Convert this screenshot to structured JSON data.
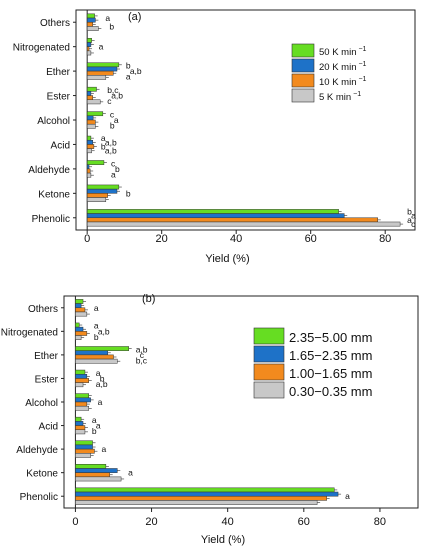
{
  "chart_data": [
    {
      "type": "bar",
      "orientation": "horizontal",
      "panel_label": "(a)",
      "xlabel": "Yield (%)",
      "xlim": [
        -3,
        88
      ],
      "xticks": [
        0,
        20,
        40,
        60,
        80
      ],
      "categories": [
        "Others",
        "Nitrogenated",
        "Ether",
        "Ester",
        "Alcohol",
        "Acid",
        "Aldehyde",
        "Ketone",
        "Phenolic"
      ],
      "series": [
        {
          "name": "50 K min",
          "unit_sup": "−1",
          "color": "#66dd22",
          "values": [
            2.0,
            1.2,
            8.5,
            2.5,
            4.2,
            1.0,
            4.5,
            8.5,
            67.5
          ]
        },
        {
          "name": "20 K min",
          "unit_sup": "−1",
          "color": "#1e72c8",
          "values": [
            2.2,
            1.0,
            8.0,
            1.0,
            1.6,
            1.5,
            0.5,
            8.0,
            69.0
          ]
        },
        {
          "name": "10 K min",
          "unit_sup": "−1",
          "color": "#f28a1e",
          "values": [
            1.5,
            0.5,
            7.0,
            1.5,
            2.2,
            1.8,
            0.8,
            5.5,
            78.0
          ]
        },
        {
          "name": "5  K min",
          "unit_sup": "−1",
          "color": "#c8c8c8",
          "values": [
            3.0,
            1.0,
            5.0,
            3.5,
            2.2,
            1.2,
            1.0,
            5.0,
            84.0
          ]
        }
      ],
      "annotations": [
        {
          "category": "Others",
          "letters": [
            "a",
            "b"
          ]
        },
        {
          "category": "Nitrogenated",
          "letters": [
            "a"
          ]
        },
        {
          "category": "Ether",
          "letters": [
            "b",
            "a,b",
            "a"
          ]
        },
        {
          "category": "Ester",
          "letters": [
            "b,c",
            "a,b",
            "c"
          ]
        },
        {
          "category": "Alcohol",
          "letters": [
            "c",
            "a",
            "b"
          ]
        },
        {
          "category": "Acid",
          "letters": [
            "a",
            "a,b",
            "b",
            "a,b"
          ]
        },
        {
          "category": "Aldehyde",
          "letters": [
            "c",
            "b",
            "a"
          ]
        },
        {
          "category": "Ketone",
          "letters": [
            "b"
          ]
        },
        {
          "category": "Phenolic",
          "letters": [
            "b",
            "a",
            "a",
            "c"
          ]
        }
      ]
    },
    {
      "type": "bar",
      "orientation": "horizontal",
      "panel_label": "(b)",
      "xlabel": "Yield (%)",
      "xlim": [
        -3,
        90
      ],
      "xticks": [
        0,
        20,
        40,
        60,
        80
      ],
      "categories": [
        "Others",
        "Nitrogenated",
        "Ether",
        "Ester",
        "Alcohol",
        "Acid",
        "Aldehyde",
        "Ketone",
        "Phenolic"
      ],
      "series": [
        {
          "name": "2.35−5.00 mm",
          "color": "#66dd22",
          "values": [
            2.0,
            1.0,
            14.0,
            2.5,
            3.5,
            1.5,
            4.5,
            8.0,
            68.0
          ]
        },
        {
          "name": "1.65−2.35 mm",
          "color": "#1e72c8",
          "values": [
            1.5,
            2.0,
            8.5,
            3.0,
            4.0,
            2.0,
            4.5,
            11.0,
            69.0
          ]
        },
        {
          "name": "1.00−1.65 mm",
          "color": "#f28a1e",
          "values": [
            2.5,
            3.0,
            10.0,
            3.5,
            3.0,
            2.5,
            5.0,
            9.0,
            66.0
          ]
        },
        {
          "name": "0.30−0.35 mm",
          "color": "#c8c8c8",
          "values": [
            3.0,
            1.5,
            11.0,
            2.0,
            3.5,
            2.5,
            4.0,
            12.0,
            63.5
          ]
        }
      ],
      "annotations": [
        {
          "category": "Others",
          "letters": [
            "a"
          ]
        },
        {
          "category": "Nitrogenated",
          "letters": [
            "a",
            "a,b",
            "b"
          ]
        },
        {
          "category": "Ether",
          "letters": [
            "a,b",
            "c",
            "b,c"
          ]
        },
        {
          "category": "Ester",
          "letters": [
            "a",
            "b",
            "a,b"
          ]
        },
        {
          "category": "Alcohol",
          "letters": [
            "a"
          ]
        },
        {
          "category": "Acid",
          "letters": [
            "a",
            "a",
            "b"
          ]
        },
        {
          "category": "Aldehyde",
          "letters": [
            "a"
          ]
        },
        {
          "category": "Ketone",
          "letters": [
            "a"
          ]
        },
        {
          "category": "Phenolic",
          "letters": [
            "a"
          ]
        }
      ]
    }
  ]
}
